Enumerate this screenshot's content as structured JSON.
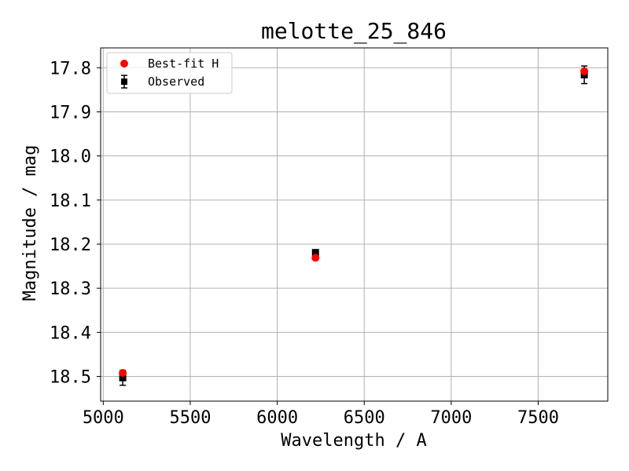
{
  "chart_data": {
    "type": "scatter",
    "title": "melotte_25_846",
    "xlabel": "Wavelength / A",
    "ylabel": "Magnitude / mag",
    "xlim": [
      4985,
      7900
    ],
    "ylim": [
      18.556,
      17.755
    ],
    "y_inverted": true,
    "grid": true,
    "legend_position": "top-left",
    "xticks": [
      5000,
      5500,
      6000,
      6500,
      7000,
      7500
    ],
    "xtick_labels": [
      "5000",
      "5500",
      "6000",
      "6500",
      "7000",
      "7500"
    ],
    "yticks": [
      17.8,
      17.9,
      18.0,
      18.1,
      18.2,
      18.3,
      18.4,
      18.5
    ],
    "ytick_labels": [
      "17.8",
      "17.9",
      "18.0",
      "18.1",
      "18.2",
      "18.3",
      "18.4",
      "18.5"
    ],
    "series": [
      {
        "name": "Best-fit H",
        "marker": "circle",
        "color": "#ff0000",
        "x": [
          5112,
          6220,
          7765
        ],
        "y": [
          18.492,
          18.231,
          17.808
        ]
      },
      {
        "name": "Observed",
        "marker": "square",
        "color": "#000000",
        "x": [
          5112,
          6220,
          7765
        ],
        "y": [
          18.503,
          18.219,
          17.816
        ],
        "yerr": [
          0.017,
          0.005,
          0.02
        ]
      }
    ]
  }
}
